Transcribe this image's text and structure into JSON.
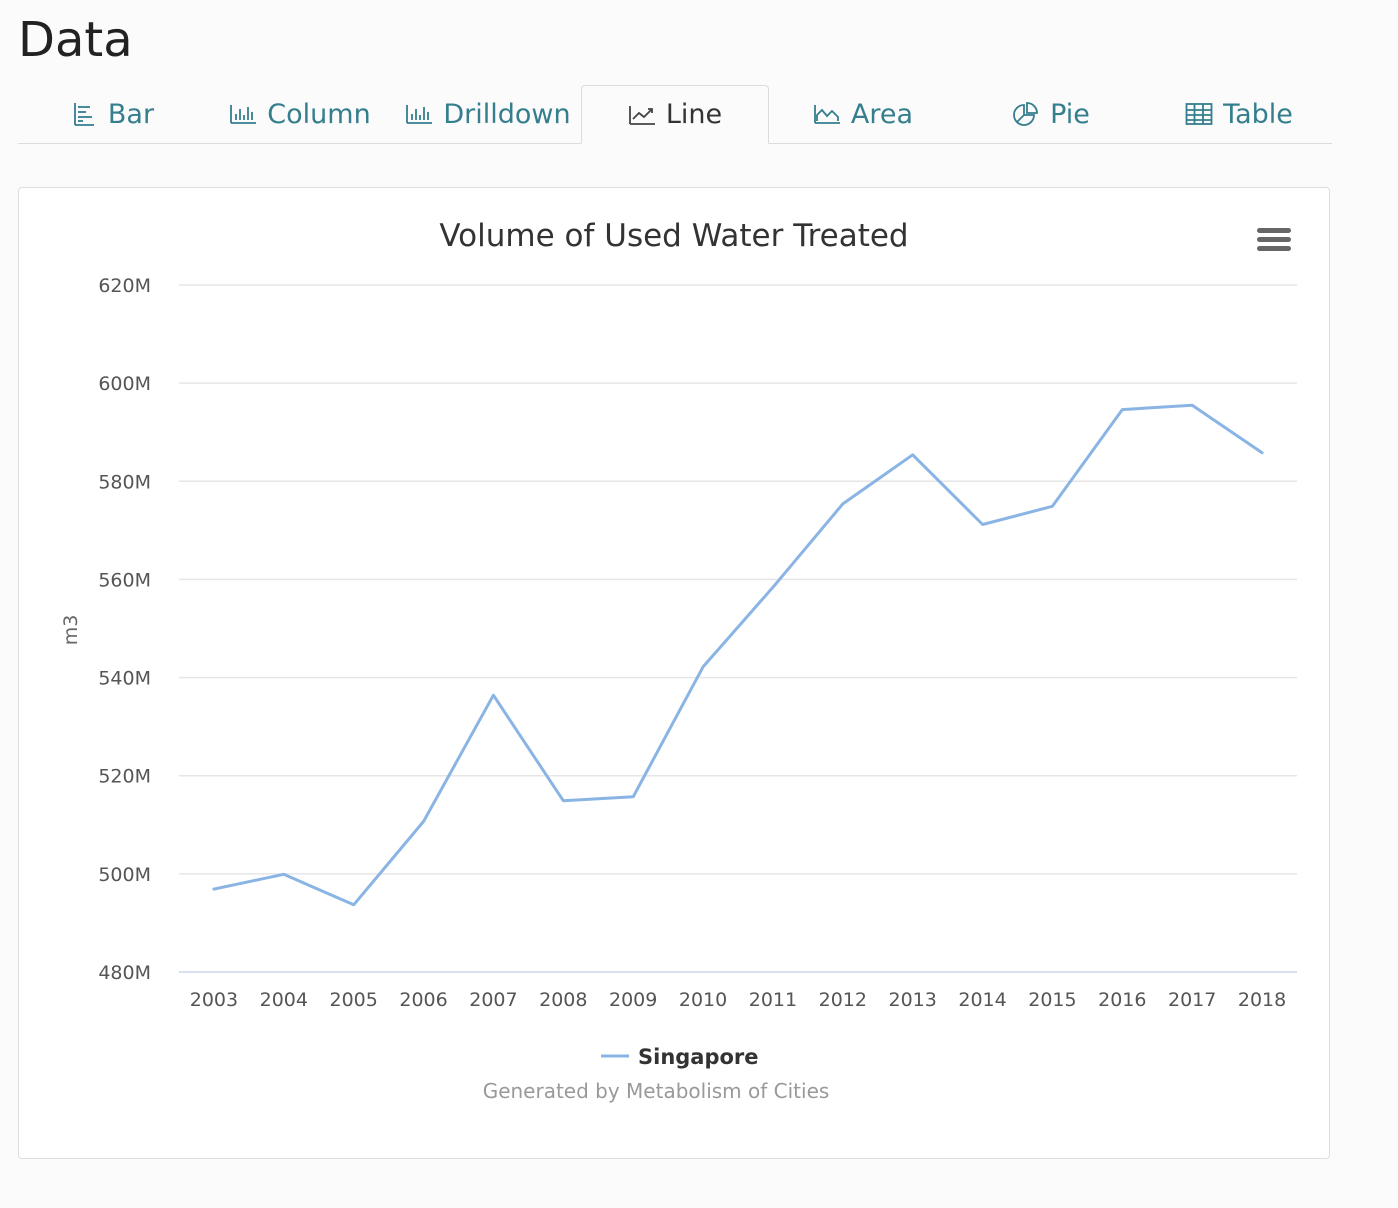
{
  "page": {
    "title": "Data"
  },
  "tabs": [
    {
      "label": "Bar",
      "icon": "bar-chart-icon",
      "active": false
    },
    {
      "label": "Column",
      "icon": "column-chart-icon",
      "active": false
    },
    {
      "label": "Drilldown",
      "icon": "drilldown-chart-icon",
      "active": false
    },
    {
      "label": "Line",
      "icon": "line-chart-icon",
      "active": true
    },
    {
      "label": "Area",
      "icon": "area-chart-icon",
      "active": false
    },
    {
      "label": "Pie",
      "icon": "pie-chart-icon",
      "active": false
    },
    {
      "label": "Table",
      "icon": "table-icon",
      "active": false
    }
  ],
  "colors": {
    "tab_text": "#347e8e",
    "series": "#8ab4e4",
    "grid": "#e6e6e6"
  },
  "chart_data": {
    "type": "line",
    "title": "Volume of Used Water Treated",
    "ylabel": "m3",
    "xlabel": "",
    "x": [
      "2003",
      "2004",
      "2005",
      "2006",
      "2007",
      "2008",
      "2009",
      "2010",
      "2011",
      "2012",
      "2013",
      "2014",
      "2015",
      "2016",
      "2017",
      "2018"
    ],
    "series": [
      {
        "name": "Singapore",
        "values": [
          496.9,
          499.9,
          493.7,
          510.7,
          536.4,
          514.9,
          515.7,
          542.2,
          558.4,
          575.4,
          585.4,
          571.2,
          574.9,
          594.6,
          595.5,
          585.8
        ]
      }
    ],
    "ylim": [
      480,
      620
    ],
    "yticks": [
      480,
      500,
      520,
      540,
      560,
      580,
      600,
      620
    ],
    "ytick_labels": [
      "480M",
      "500M",
      "520M",
      "540M",
      "560M",
      "580M",
      "600M",
      "620M"
    ],
    "grid": true,
    "legend": "bottom-center",
    "credits": "Generated by Metabolism of Cities"
  }
}
